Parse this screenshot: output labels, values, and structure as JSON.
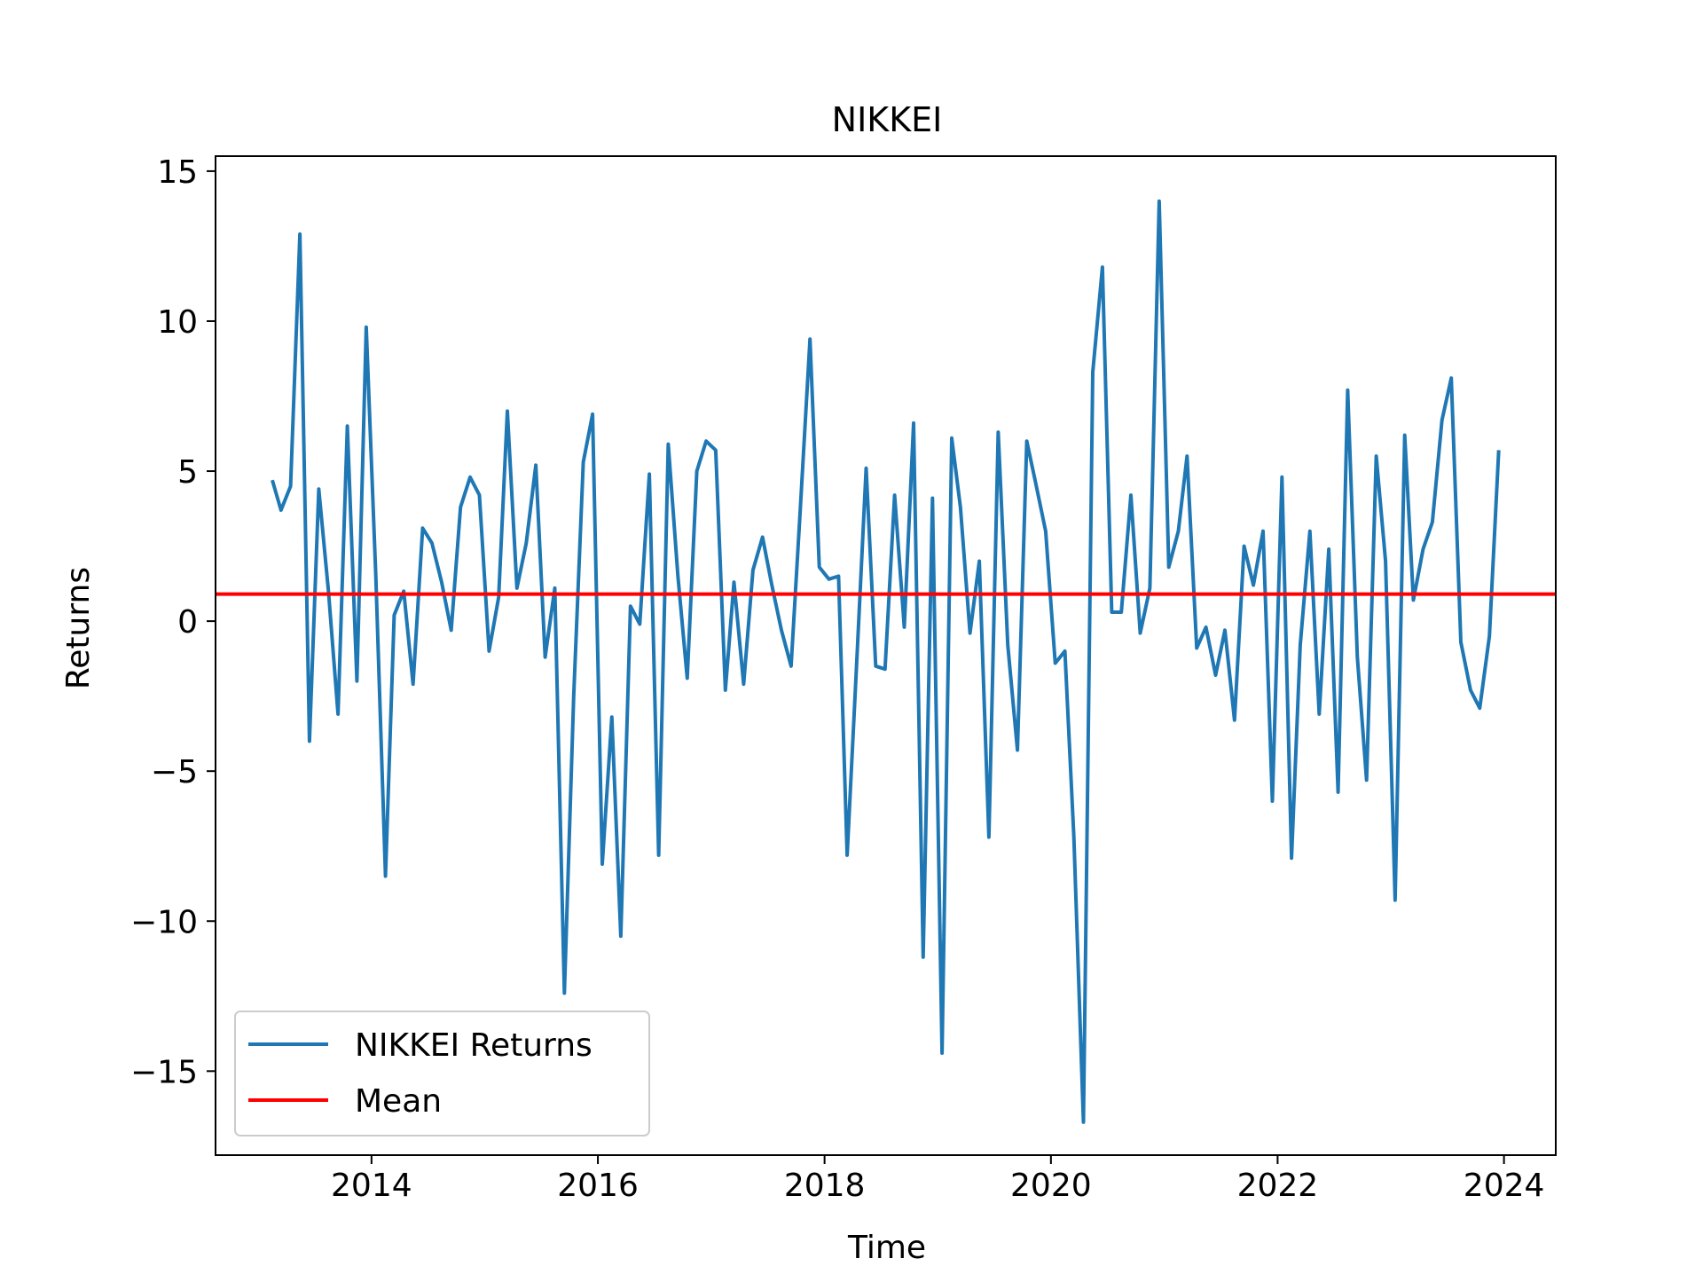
{
  "chart_data": {
    "type": "line",
    "title": "NIKKEI",
    "xlabel": "Time",
    "ylabel": "Returns",
    "xlim": [
      "2012-08-16",
      "2024-06-16"
    ],
    "ylim": [
      -17.8,
      15.5
    ],
    "x_ticks": [
      {
        "date": "2014-01-01",
        "label": "2014"
      },
      {
        "date": "2016-01-01",
        "label": "2016"
      },
      {
        "date": "2018-01-01",
        "label": "2018"
      },
      {
        "date": "2020-01-01",
        "label": "2020"
      },
      {
        "date": "2022-01-01",
        "label": "2022"
      },
      {
        "date": "2024-01-01",
        "label": "2024"
      }
    ],
    "y_ticks": [
      {
        "value": 15,
        "label": "15"
      },
      {
        "value": 10,
        "label": "10"
      },
      {
        "value": 5,
        "label": "5"
      },
      {
        "value": 0,
        "label": "0"
      },
      {
        "value": -5,
        "label": "−5"
      },
      {
        "value": -10,
        "label": "−10"
      },
      {
        "value": -15,
        "label": "−15"
      }
    ],
    "grid": false,
    "legend_position": "lower-left",
    "series": [
      {
        "name": "NIKKEI Returns",
        "color": "#1f77b4",
        "start_month": "2013-02",
        "values": [
          4.7,
          3.7,
          4.5,
          12.9,
          -4.0,
          4.4,
          1.0,
          -3.1,
          6.5,
          -2.0,
          9.8,
          1.5,
          -8.5,
          0.2,
          1.0,
          -2.1,
          3.1,
          2.6,
          1.3,
          -0.3,
          3.8,
          4.8,
          4.2,
          -1.0,
          0.8,
          7.0,
          1.1,
          2.6,
          5.2,
          -1.2,
          1.1,
          -12.4,
          -2.5,
          5.3,
          6.9,
          -8.1,
          -3.2,
          -10.5,
          0.5,
          -0.1,
          4.9,
          -7.8,
          5.9,
          1.5,
          -1.9,
          5.0,
          6.0,
          5.7,
          -2.3,
          1.3,
          -2.1,
          1.7,
          2.8,
          1.2,
          -0.3,
          -1.5,
          3.8,
          9.4,
          1.8,
          1.4,
          1.5,
          -7.8,
          -1.3,
          5.1,
          -1.5,
          -1.6,
          4.2,
          -0.2,
          6.6,
          -11.2,
          4.1,
          -14.4,
          6.1,
          3.8,
          -0.4,
          2.0,
          -7.2,
          6.3,
          -0.8,
          -4.3,
          6.0,
          4.5,
          3.0,
          -1.4,
          -1.0,
          -7.2,
          -16.7,
          8.3,
          11.8,
          0.3,
          0.3,
          4.2,
          -0.4,
          1.1,
          14.0,
          1.8,
          3.0,
          5.5,
          -0.9,
          -0.2,
          -1.8,
          -0.3,
          -3.3,
          2.5,
          1.2,
          3.0,
          -6.0,
          4.8,
          -7.9,
          -0.8,
          3.0,
          -3.1,
          2.4,
          -5.7,
          7.7,
          -1.2,
          -5.3,
          5.5,
          2.0,
          -9.3,
          6.2,
          0.7,
          2.4,
          3.3,
          6.7,
          8.1,
          -0.7,
          -2.3,
          -2.9,
          -0.5,
          5.7
        ]
      },
      {
        "name": "Mean",
        "color": "#ff0000",
        "constant": 0.9
      }
    ]
  }
}
